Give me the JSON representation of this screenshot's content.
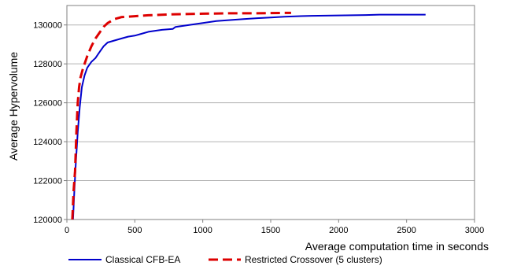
{
  "chart_data": {
    "type": "line",
    "xlabel": "Average computation time in seconds",
    "ylabel": "Average Hypervolume",
    "xlim": [
      0,
      3000
    ],
    "ylim": [
      120000,
      131000
    ],
    "x_ticks": [
      "0",
      "500",
      "1000",
      "1500",
      "2000",
      "2500",
      "3000"
    ],
    "y_ticks": [
      "120000",
      "122000",
      "124000",
      "126000",
      "128000",
      "130000"
    ],
    "grid": "horizontal",
    "legend_position": "bottom",
    "series": [
      {
        "name": "Classical CFB-EA",
        "color": "#0000cc",
        "style": "solid",
        "points": [
          [
            45,
            120000
          ],
          [
            55,
            121500
          ],
          [
            65,
            122800
          ],
          [
            80,
            124500
          ],
          [
            95,
            125800
          ],
          [
            110,
            126800
          ],
          [
            130,
            127400
          ],
          [
            150,
            127800
          ],
          [
            180,
            128100
          ],
          [
            210,
            128300
          ],
          [
            240,
            128600
          ],
          [
            270,
            128900
          ],
          [
            300,
            129100
          ],
          [
            350,
            129200
          ],
          [
            400,
            129300
          ],
          [
            450,
            129400
          ],
          [
            500,
            129450
          ],
          [
            550,
            129550
          ],
          [
            600,
            129650
          ],
          [
            650,
            129700
          ],
          [
            700,
            129750
          ],
          [
            780,
            129800
          ],
          [
            800,
            129900
          ],
          [
            900,
            130000
          ],
          [
            1000,
            130100
          ],
          [
            1100,
            130200
          ],
          [
            1200,
            130250
          ],
          [
            1300,
            130300
          ],
          [
            1400,
            130350
          ],
          [
            1500,
            130380
          ],
          [
            1600,
            130420
          ],
          [
            1700,
            130450
          ],
          [
            1800,
            130470
          ],
          [
            1900,
            130480
          ],
          [
            2000,
            130490
          ],
          [
            2100,
            130500
          ],
          [
            2200,
            130510
          ],
          [
            2300,
            130530
          ],
          [
            2400,
            130530
          ],
          [
            2500,
            130530
          ],
          [
            2600,
            130530
          ],
          [
            2640,
            130530
          ]
        ]
      },
      {
        "name": "Restricted Crossover (5 clusters)",
        "color": "#dd0000",
        "style": "dashed",
        "points": [
          [
            40,
            120000
          ],
          [
            50,
            121500
          ],
          [
            60,
            122500
          ],
          [
            70,
            124500
          ],
          [
            80,
            126000
          ],
          [
            90,
            126800
          ],
          [
            100,
            127300
          ],
          [
            120,
            127800
          ],
          [
            150,
            128400
          ],
          [
            180,
            128900
          ],
          [
            210,
            129300
          ],
          [
            240,
            129600
          ],
          [
            270,
            129900
          ],
          [
            300,
            130100
          ],
          [
            350,
            130300
          ],
          [
            400,
            130400
          ],
          [
            500,
            130450
          ],
          [
            600,
            130500
          ],
          [
            800,
            130550
          ],
          [
            1000,
            130580
          ],
          [
            1200,
            130600
          ],
          [
            1400,
            130600
          ],
          [
            1600,
            130620
          ],
          [
            1650,
            130620
          ]
        ]
      }
    ]
  }
}
